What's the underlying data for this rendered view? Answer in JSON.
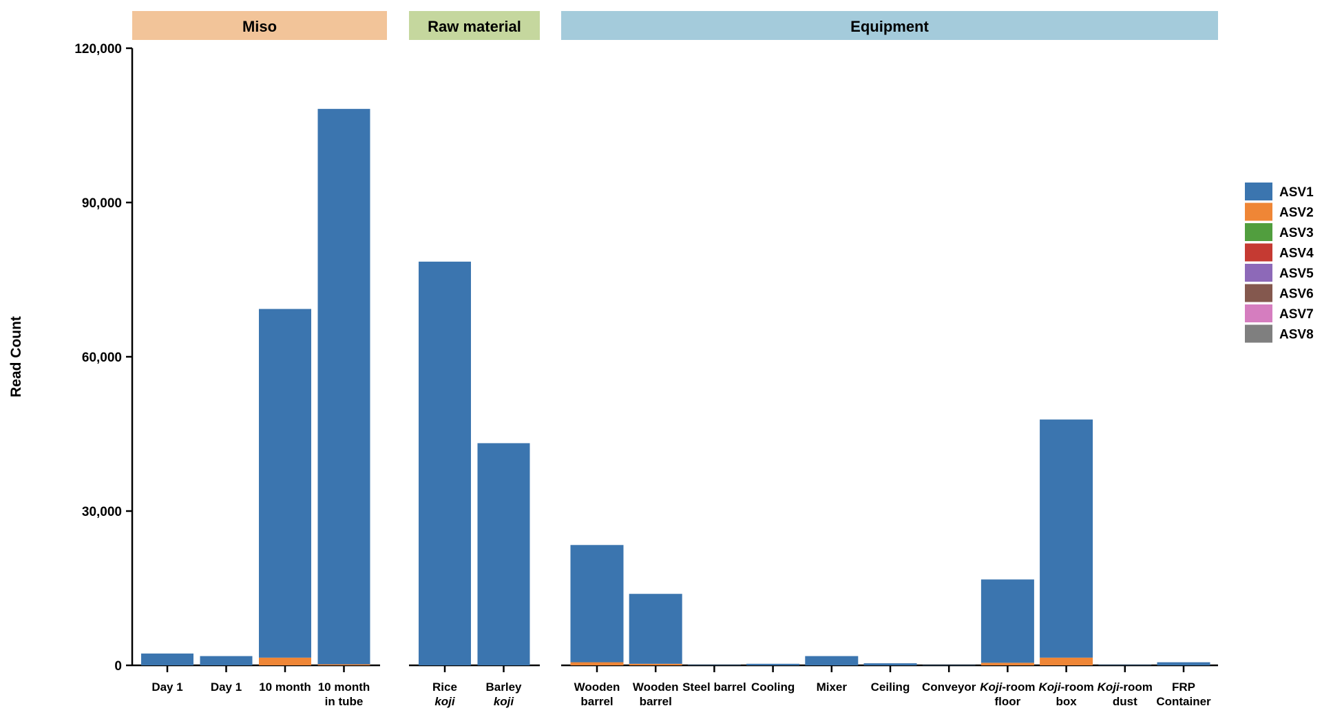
{
  "chart_data": {
    "type": "bar",
    "stacked": true,
    "ylabel": "Read Count",
    "ylim": [
      0,
      120000
    ],
    "yticks": [
      "0",
      "30,000",
      "60,000",
      "90,000",
      "120,000"
    ],
    "ytick_values": [
      0,
      30000,
      60000,
      90000,
      120000
    ],
    "legend_position": "right",
    "series_colors": [
      "#3b75af",
      "#ef8636",
      "#519e3e",
      "#c53a32",
      "#8d69b8",
      "#84584e",
      "#d57dbf",
      "#7f7f7f"
    ],
    "series_names": [
      "ASV1",
      "ASV2",
      "ASV3",
      "ASV4",
      "ASV5",
      "ASV6",
      "ASV7",
      "ASV8"
    ],
    "groups": [
      {
        "title": "Miso",
        "color": "#f2c499",
        "categories": [
          {
            "line1": "Day 1",
            "line2": "",
            "italic1": ""
          },
          {
            "line1": "Day 1",
            "line2": "",
            "italic1": ""
          },
          {
            "line1": "10 month",
            "line2": "",
            "italic1": ""
          },
          {
            "line1": "10 month",
            "line2": "in tube",
            "italic1": ""
          }
        ],
        "values": [
          [
            2300,
            0,
            0,
            0,
            0,
            0,
            0,
            0
          ],
          [
            1800,
            0,
            0,
            0,
            0,
            0,
            0,
            0
          ],
          [
            67800,
            1500,
            0,
            0,
            0,
            0,
            0,
            0
          ],
          [
            108000,
            200,
            0,
            0,
            0,
            0,
            0,
            0
          ]
        ]
      },
      {
        "title": "Raw material",
        "color": "#c5d79e",
        "categories": [
          {
            "line1": "Rice",
            "line2": "koji",
            "italic1": ""
          },
          {
            "line1": "Barley",
            "line2": "koji",
            "italic1": ""
          }
        ],
        "values": [
          [
            78500,
            0,
            0,
            0,
            0,
            0,
            0,
            0
          ],
          [
            43200,
            0,
            0,
            0,
            0,
            0,
            0,
            0
          ]
        ]
      },
      {
        "title": "Equipment",
        "color": "#a4cbdb",
        "categories": [
          {
            "line1": "Wooden",
            "line2": "barrel",
            "italic1": ""
          },
          {
            "line1": "Wooden",
            "line2": "barrel",
            "italic1": ""
          },
          {
            "line1": "Steel barrel",
            "line2": "",
            "italic1": ""
          },
          {
            "line1": "Cooling",
            "line2": "",
            "italic1": ""
          },
          {
            "line1": "Mixer",
            "line2": "",
            "italic1": ""
          },
          {
            "line1": "Ceiling",
            "line2": "",
            "italic1": ""
          },
          {
            "line1": "Conveyor",
            "line2": "",
            "italic1": ""
          },
          {
            "line1": "-room",
            "line2": "floor",
            "italic1": "Koji"
          },
          {
            "line1": "-room",
            "line2": "box",
            "italic1": "Koji"
          },
          {
            "line1": "-room",
            "line2": "dust",
            "italic1": "Koji"
          },
          {
            "line1": "FRP",
            "line2": "Container",
            "italic1": ""
          }
        ],
        "values": [
          [
            22800,
            600,
            0,
            0,
            0,
            0,
            0,
            0
          ],
          [
            13600,
            300,
            0,
            0,
            0,
            0,
            0,
            0
          ],
          [
            80,
            0,
            0,
            0,
            0,
            0,
            0,
            0
          ],
          [
            300,
            0,
            0,
            0,
            0,
            0,
            0,
            0
          ],
          [
            1800,
            0,
            0,
            0,
            0,
            0,
            0,
            0
          ],
          [
            400,
            0,
            0,
            0,
            0,
            0,
            0,
            0
          ],
          [
            50,
            0,
            0,
            0,
            0,
            0,
            0,
            0
          ],
          [
            16200,
            500,
            0,
            0,
            0,
            0,
            0,
            0
          ],
          [
            46300,
            1500,
            0,
            0,
            0,
            0,
            0,
            0
          ],
          [
            80,
            0,
            0,
            0,
            0,
            0,
            0,
            0
          ],
          [
            600,
            0,
            0,
            0,
            0,
            0,
            0,
            0
          ]
        ]
      }
    ]
  }
}
